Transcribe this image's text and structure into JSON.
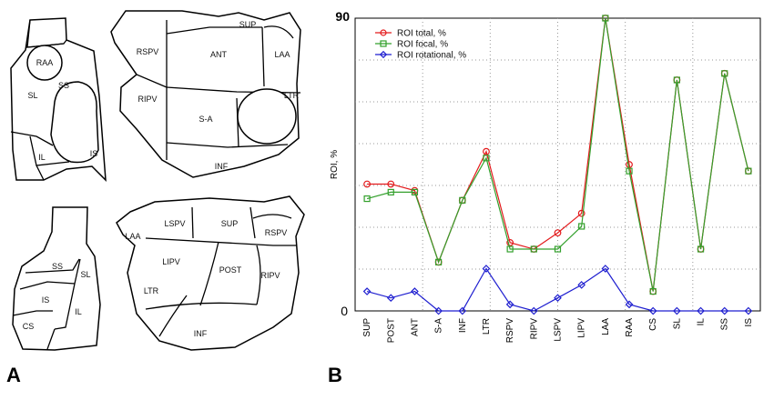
{
  "panels": {
    "a_label": "A",
    "b_label": "B"
  },
  "diagram": {
    "right_lateral": {
      "labels": {
        "raa": "RAA",
        "sl": "SL",
        "ss": "SS",
        "il": "IL",
        "is": "IS"
      }
    },
    "la_posterior_top": {
      "labels": {
        "sup": "SUP",
        "rspv": "RSPV",
        "ant": "ANT",
        "laa": "LAA",
        "ripv": "RIPV",
        "ltr": "LTR",
        "sa": "S-A",
        "inf": "INF"
      }
    },
    "right_septal": {
      "labels": {
        "ss": "SS",
        "sl": "SL",
        "is": "IS",
        "il": "IL",
        "cs": "CS"
      }
    },
    "la_posterior_bottom": {
      "labels": {
        "laa": "LAA",
        "lspv": "LSPV",
        "sup": "SUP",
        "rspv": "RSPV",
        "lipv": "LIPV",
        "post": "POST",
        "ripv": "RIPV",
        "ltr": "LTR",
        "inf": "INF"
      }
    }
  },
  "chart_data": {
    "type": "line",
    "title": "",
    "xlabel": "",
    "ylabel": "ROI, %",
    "ylim": [
      0,
      90
    ],
    "ytick_labels": [
      "0",
      "90"
    ],
    "categories": [
      "SUP",
      "POST",
      "ANT",
      "S-A",
      "INF",
      "LTR",
      "RSPV",
      "RIPV",
      "LSPV",
      "LIPV",
      "LAA",
      "RAA",
      "CS",
      "SL",
      "IL",
      "SS",
      "IS"
    ],
    "legend_position": "top-left",
    "series": [
      {
        "name": "ROI total, %",
        "color": "#e31a1c",
        "marker": "circle",
        "values": [
          39,
          39,
          37,
          15,
          34,
          49,
          21,
          19,
          24,
          30,
          90,
          45,
          6,
          71,
          19,
          73,
          43
        ]
      },
      {
        "name": "ROI focal, %",
        "color": "#33a02c",
        "marker": "square",
        "values": [
          34.5,
          36.5,
          36.5,
          15,
          34,
          47,
          19,
          19,
          19,
          26,
          90,
          43,
          6,
          71,
          19,
          73,
          43
        ]
      },
      {
        "name": "ROI rotational, %",
        "color": "#1f1fd0",
        "marker": "diamond",
        "values": [
          6,
          4,
          6,
          0,
          0,
          13,
          2,
          0,
          4,
          8,
          13,
          2,
          0,
          0,
          0,
          0,
          0
        ]
      }
    ]
  }
}
